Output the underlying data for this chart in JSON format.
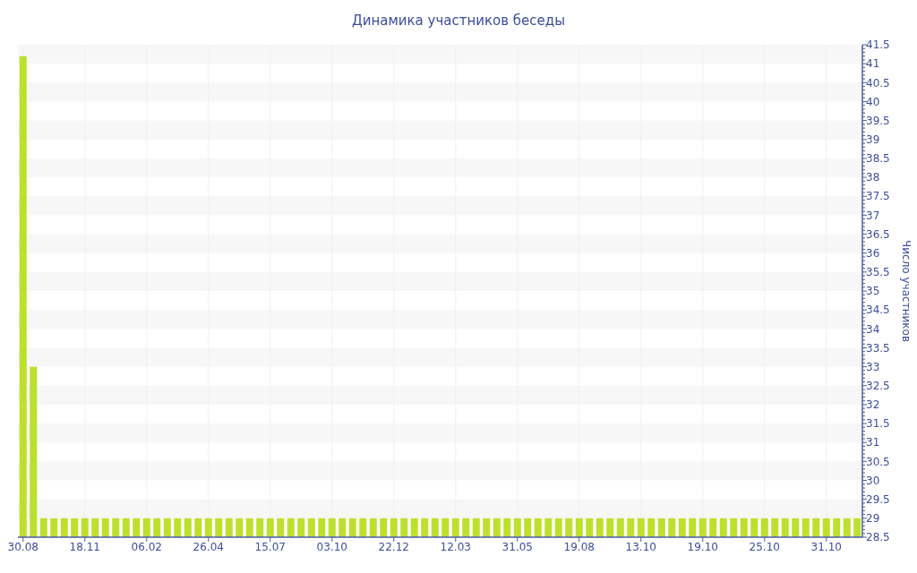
{
  "chart_data": {
    "type": "bar",
    "title": "Динамика участников беседы",
    "ylabel": "Число участников",
    "categories": [
      "30.08",
      null,
      null,
      null,
      null,
      null,
      "18.11",
      null,
      null,
      null,
      null,
      null,
      "06.02",
      null,
      null,
      null,
      null,
      null,
      "26.04",
      null,
      null,
      null,
      null,
      null,
      "15.07",
      null,
      null,
      null,
      null,
      null,
      "03.10",
      null,
      null,
      null,
      null,
      null,
      "22.12",
      null,
      null,
      null,
      null,
      null,
      "12.03",
      null,
      null,
      null,
      null,
      null,
      "31.05",
      null,
      null,
      null,
      null,
      null,
      "19.08",
      null,
      null,
      null,
      null,
      null,
      "13.10",
      null,
      null,
      null,
      null,
      null,
      "19.10",
      null,
      null,
      null,
      null,
      null,
      "25.10",
      null,
      null,
      null,
      null,
      null,
      "31.10",
      null,
      null,
      null
    ],
    "values": [
      41.2,
      33,
      29,
      29,
      29,
      29,
      29,
      29,
      29,
      29,
      29,
      29,
      29,
      29,
      29,
      29,
      29,
      29,
      29,
      29,
      29,
      29,
      29,
      29,
      29,
      29,
      29,
      29,
      29,
      29,
      29,
      29,
      29,
      29,
      29,
      29,
      29,
      29,
      29,
      29,
      29,
      29,
      29,
      29,
      29,
      29,
      29,
      29,
      29,
      29,
      29,
      29,
      29,
      29,
      29,
      29,
      29,
      29,
      29,
      29,
      29,
      29,
      29,
      29,
      29,
      29,
      29,
      29,
      29,
      29,
      29,
      29,
      29,
      29,
      29,
      29,
      29,
      29,
      29,
      29,
      29,
      29
    ],
    "color": "#bde02e",
    "ylim": [
      28.5,
      41.5
    ],
    "yticks": [
      28.5,
      {
        "value": 28.6,
        "label": null
      },
      {
        "value": 28.7,
        "label": null
      },
      {
        "value": 28.8,
        "label": null
      },
      {
        "value": 28.9,
        "label": null
      },
      29,
      {
        "value": 29.1,
        "label": null
      },
      {
        "value": 29.2,
        "label": null
      },
      {
        "value": 29.3,
        "label": null
      },
      {
        "value": 29.4,
        "label": null
      },
      29.5,
      {
        "value": 29.6,
        "label": null
      },
      {
        "value": 29.7,
        "label": null
      },
      {
        "value": 29.8,
        "label": null
      },
      {
        "value": 29.9,
        "label": null
      },
      30,
      {
        "value": 30.1,
        "label": null
      },
      {
        "value": 30.2,
        "label": null
      },
      {
        "value": 30.3,
        "label": null
      },
      {
        "value": 30.4,
        "label": null
      },
      30.5,
      {
        "value": 30.6,
        "label": null
      },
      {
        "value": 30.7,
        "label": null
      },
      {
        "value": 30.8,
        "label": null
      },
      {
        "value": 30.9,
        "label": null
      },
      31,
      {
        "value": 31.1,
        "label": null
      },
      {
        "value": 31.2,
        "label": null
      },
      {
        "value": 31.3,
        "label": null
      },
      {
        "value": 31.4,
        "label": null
      },
      31.5,
      {
        "value": 31.6,
        "label": null
      },
      {
        "value": 31.7,
        "label": null
      },
      {
        "value": 31.8,
        "label": null
      },
      {
        "value": 31.9,
        "label": null
      },
      32,
      {
        "value": 32.1,
        "label": null
      },
      {
        "value": 32.2,
        "label": null
      },
      {
        "value": 32.3,
        "label": null
      },
      {
        "value": 32.4,
        "label": null
      },
      32.5,
      {
        "value": 32.6,
        "label": null
      },
      {
        "value": 32.7,
        "label": null
      },
      {
        "value": 32.8,
        "label": null
      },
      {
        "value": 32.9,
        "label": null
      },
      33,
      {
        "value": 33.1,
        "label": null
      },
      {
        "value": 33.2,
        "label": null
      },
      {
        "value": 33.3,
        "label": null
      },
      {
        "value": 33.4,
        "label": null
      },
      33.5,
      {
        "value": 33.6,
        "label": null
      },
      {
        "value": 33.7,
        "label": null
      },
      {
        "value": 33.8,
        "label": null
      },
      {
        "value": 33.9,
        "label": null
      },
      34,
      {
        "value": 34.1,
        "label": null
      },
      {
        "value": 34.2,
        "label": null
      },
      {
        "value": 34.3,
        "label": null
      },
      {
        "value": 34.4,
        "label": null
      },
      34.5,
      {
        "value": 34.6,
        "label": null
      },
      {
        "value": 34.7,
        "label": null
      },
      {
        "value": 34.8,
        "label": null
      },
      {
        "value": 34.9,
        "label": null
      },
      35,
      {
        "value": 35.1,
        "label": null
      },
      {
        "value": 35.2,
        "label": null
      },
      {
        "value": 35.3,
        "label": null
      },
      {
        "value": 35.4,
        "label": null
      },
      35.5,
      {
        "value": 35.6,
        "label": null
      },
      {
        "value": 35.7,
        "label": null
      },
      {
        "value": 35.8,
        "label": null
      },
      {
        "value": 35.9,
        "label": null
      },
      36,
      {
        "value": 36.1,
        "label": null
      },
      {
        "value": 36.2,
        "label": null
      },
      {
        "value": 36.3,
        "label": null
      },
      {
        "value": 36.4,
        "label": null
      },
      36.5,
      {
        "value": 36.6,
        "label": null
      },
      {
        "value": 36.7,
        "label": null
      },
      {
        "value": 36.8,
        "label": null
      },
      {
        "value": 36.9,
        "label": null
      },
      37,
      {
        "value": 37.1,
        "label": null
      },
      {
        "value": 37.2,
        "label": null
      },
      {
        "value": 37.3,
        "label": null
      },
      {
        "value": 37.4,
        "label": null
      },
      37.5,
      {
        "value": 37.6,
        "label": null
      },
      {
        "value": 37.7,
        "label": null
      },
      {
        "value": 37.8,
        "label": null
      },
      {
        "value": 37.9,
        "label": null
      },
      38,
      {
        "value": 38.1,
        "label": null
      },
      {
        "value": 38.2,
        "label": null
      },
      {
        "value": 38.3,
        "label": null
      },
      {
        "value": 38.4,
        "label": null
      },
      38.5,
      {
        "value": 38.6,
        "label": null
      },
      {
        "value": 38.7,
        "label": null
      },
      {
        "value": 38.8,
        "label": null
      },
      {
        "value": 38.9,
        "label": null
      },
      39,
      {
        "value": 39.1,
        "label": null
      },
      {
        "value": 39.2,
        "label": null
      },
      {
        "value": 39.3,
        "label": null
      },
      {
        "value": 39.4,
        "label": null
      },
      39.5,
      {
        "value": 39.6,
        "label": null
      },
      {
        "value": 39.7,
        "label": null
      },
      {
        "value": 39.8,
        "label": null
      },
      {
        "value": 39.9,
        "label": null
      },
      40,
      {
        "value": 40.1,
        "label": null
      },
      {
        "value": 40.2,
        "label": null
      },
      {
        "value": 40.3,
        "label": null
      },
      {
        "value": 40.4,
        "label": null
      },
      40.5,
      {
        "value": 40.6,
        "label": null
      },
      {
        "value": 40.7,
        "label": null
      },
      {
        "value": 40.8,
        "label": null
      },
      {
        "value": 40.9,
        "label": null
      },
      41,
      {
        "value": 41.1,
        "label": null
      },
      {
        "value": 41.2,
        "label": null
      },
      {
        "value": 41.3,
        "label": null
      },
      {
        "value": 41.4,
        "label": null
      },
      41.5
    ],
    "grid": true
  }
}
